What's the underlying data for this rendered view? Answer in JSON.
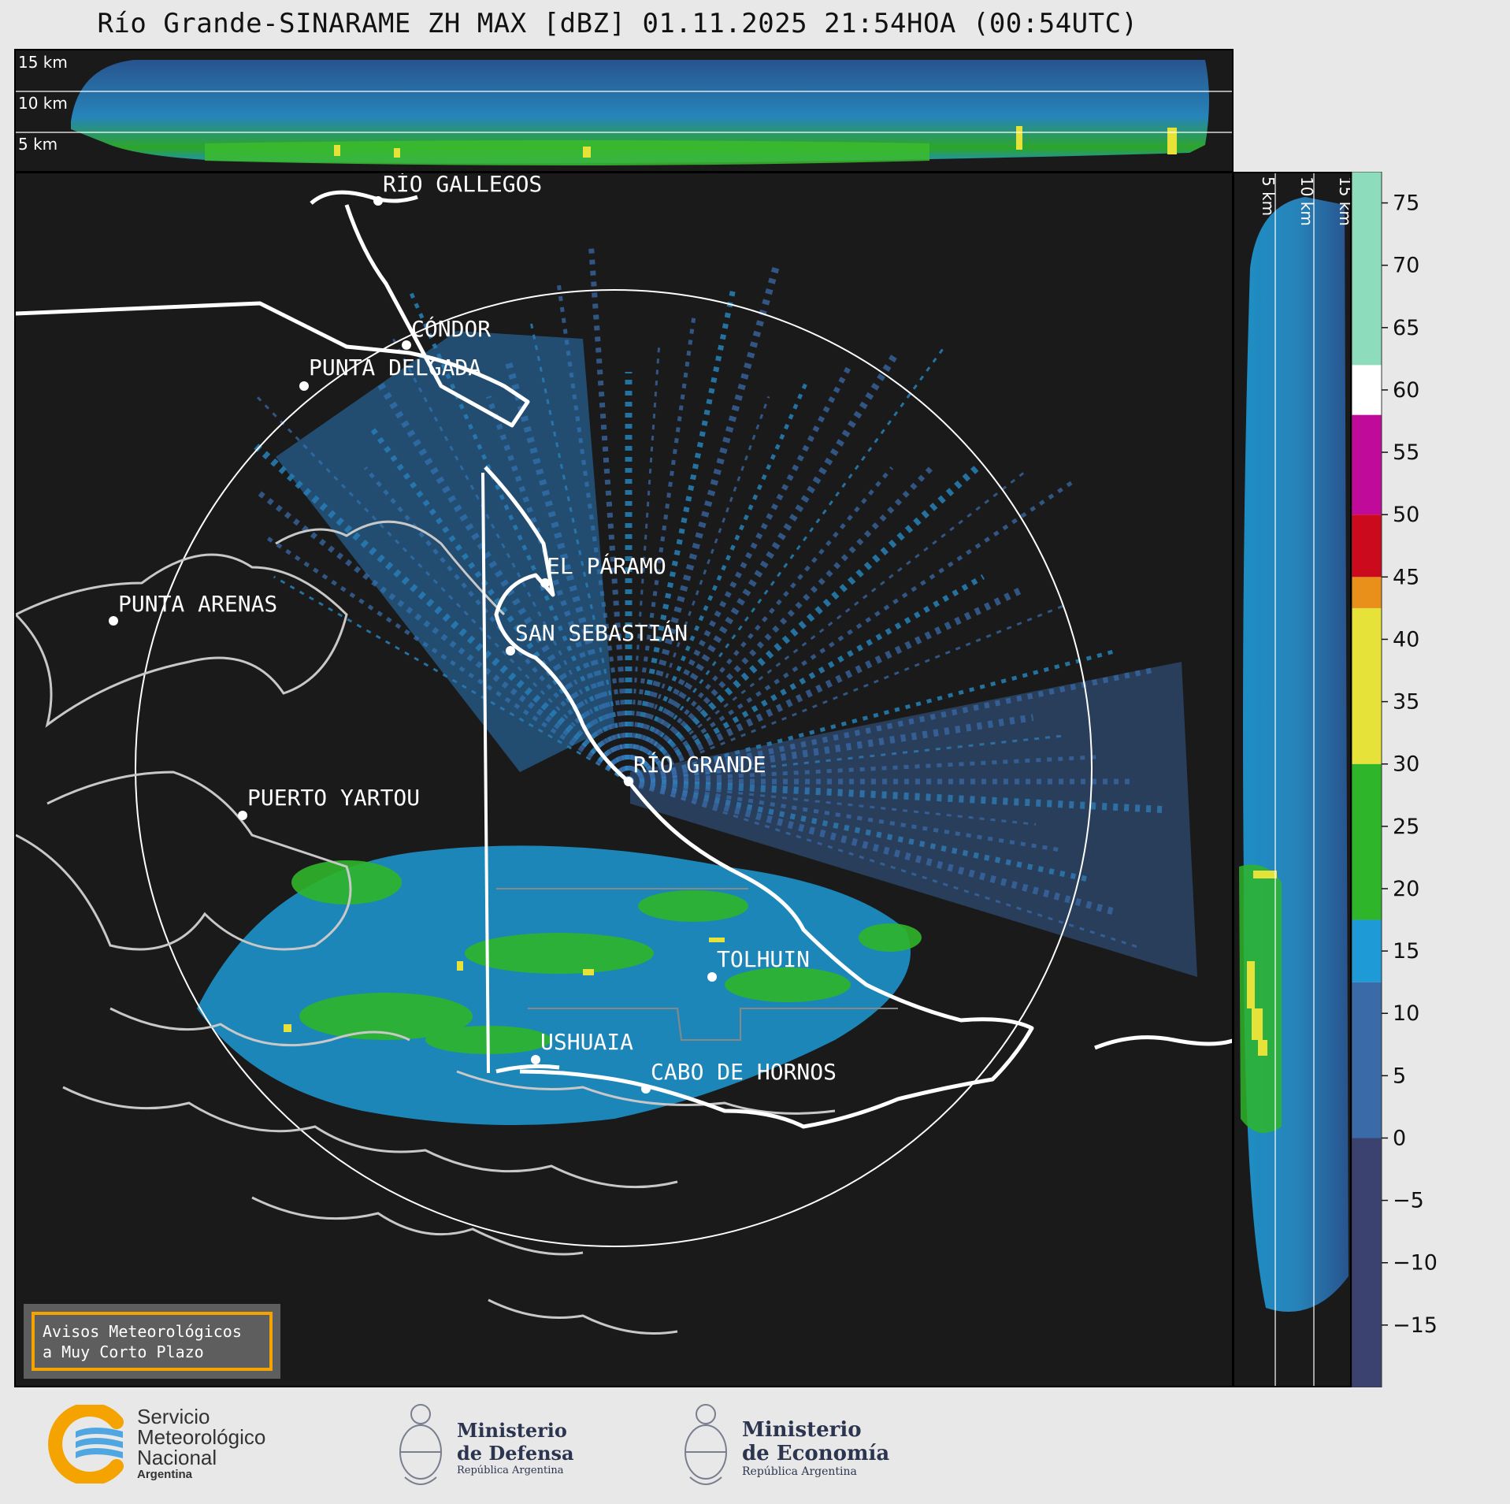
{
  "title": "Río Grande-SINARAME ZH MAX [dBZ] 01.11.2025 21:54HOA (00:54UTC)",
  "top_panel": {
    "height_labels": [
      "15 km",
      "10 km",
      "5 km"
    ]
  },
  "side_panel": {
    "height_labels": [
      "5 km",
      "10 km",
      "15 km"
    ]
  },
  "map": {
    "places": [
      {
        "name": "RÍO GALLEGOS"
      },
      {
        "name": "CÓNDOR"
      },
      {
        "name": "PUNTA DELGADA"
      },
      {
        "name": "EL PÁRAMO"
      },
      {
        "name": "SAN SEBASTIÁN"
      },
      {
        "name": "PUNTA ARENAS"
      },
      {
        "name": "RÍO GRANDE"
      },
      {
        "name": "PUERTO YARTOU"
      },
      {
        "name": "TOLHUIN"
      },
      {
        "name": "USHUAIA"
      },
      {
        "name": "CABO DE HORNOS"
      }
    ]
  },
  "colorbar": {
    "unit": "dBZ",
    "ticks": [
      "75",
      "70",
      "65",
      "60",
      "55",
      "50",
      "45",
      "40",
      "35",
      "30",
      "25",
      "20",
      "15",
      "10",
      "5",
      "0",
      "−5",
      "−10",
      "−15"
    ],
    "colors": {
      "negative": "#3b4270",
      "low_blue": "#3a6aa8",
      "mid_blue": "#1e9ad6",
      "green": "#2fb52a",
      "yellow": "#e6e23a",
      "orange": "#e8901a",
      "red": "#cc0a1e",
      "magenta": "#c00a9a",
      "white": "#ffffff",
      "mint": "#8ddcbc"
    }
  },
  "warning_box": {
    "line1": "Avisos Meteorológicos",
    "line2": "a Muy Corto Plazo"
  },
  "footer": {
    "smn": {
      "line1": "Servicio",
      "line2": "Meteorológico",
      "line3": "Nacional",
      "line4": "Argentina"
    },
    "defensa": {
      "line1": "Ministerio",
      "line2": "de Defensa",
      "line3": "República Argentina"
    },
    "economia": {
      "line1": "Ministerio",
      "line2": "de Economía",
      "line3": "República Argentina"
    }
  }
}
